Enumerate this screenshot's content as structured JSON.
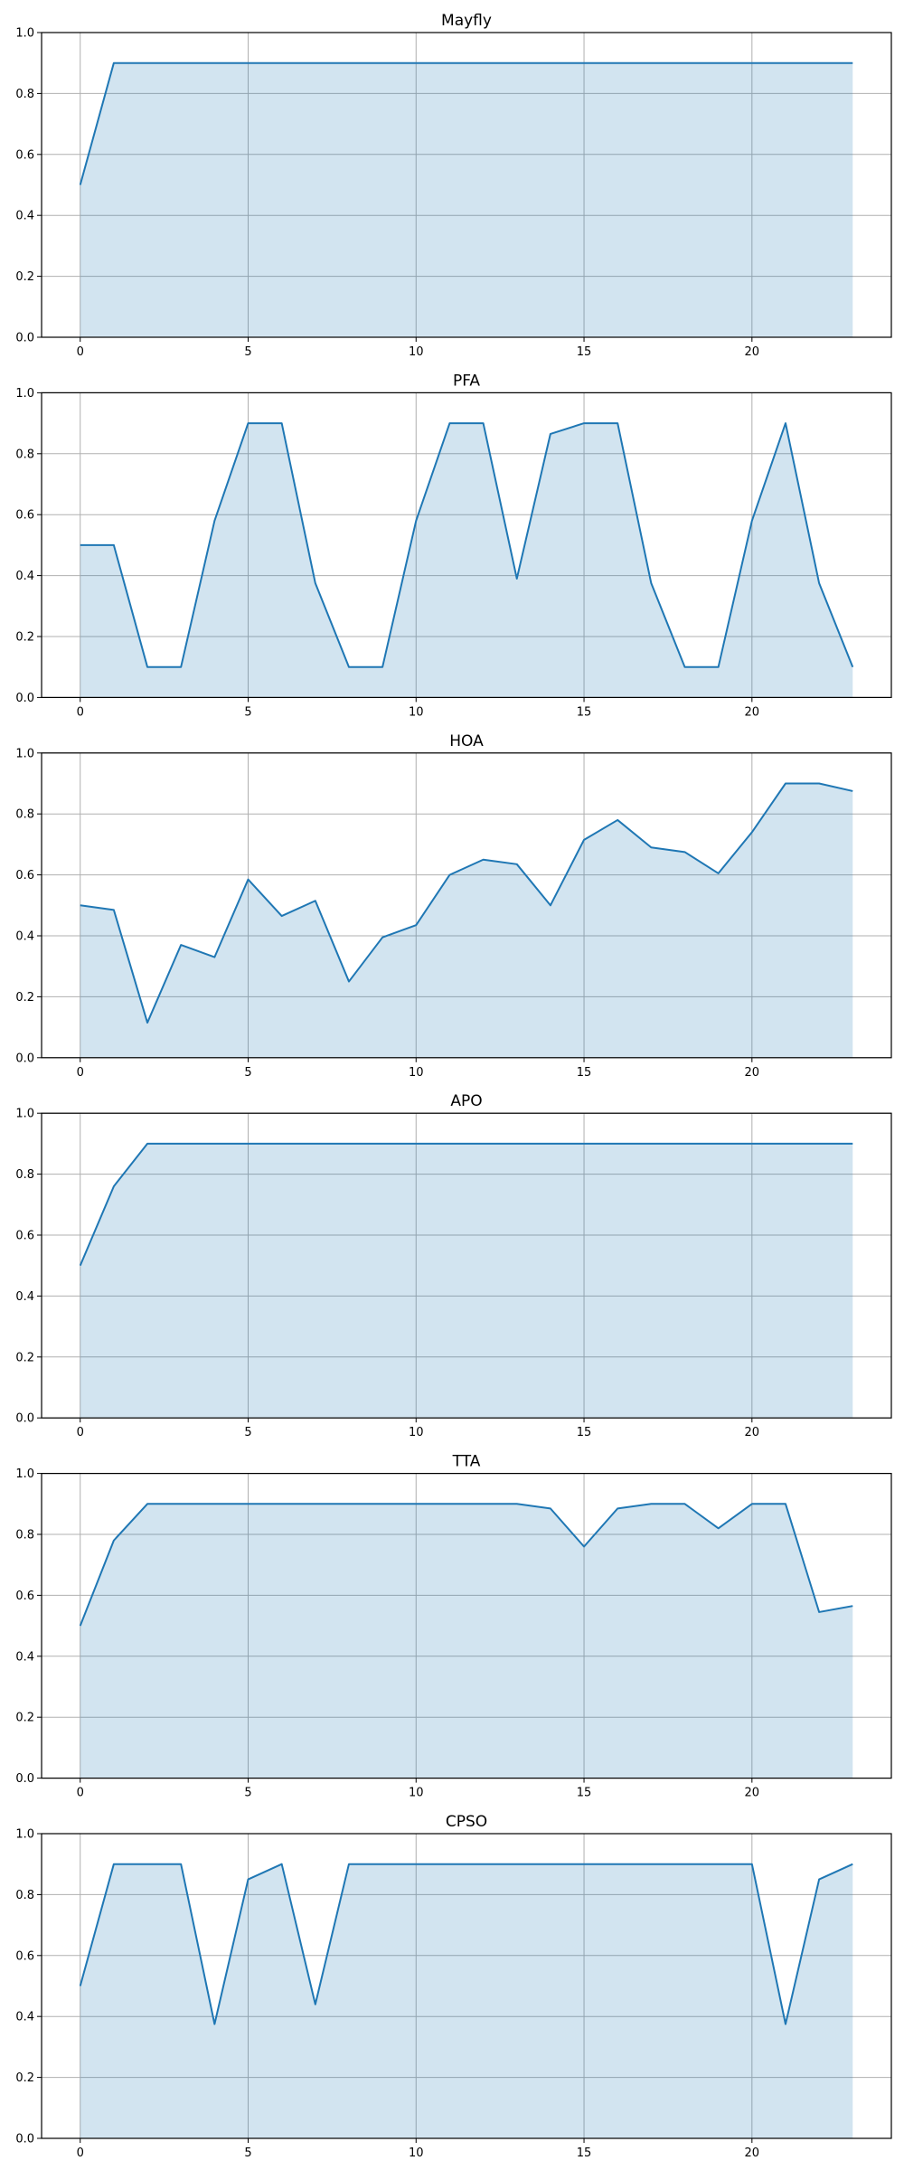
{
  "colors": {
    "line": "#1f77b4",
    "fill": "#1f77b4",
    "fill_opacity": 0.2,
    "grid": "#b0b0b0",
    "frame": "#000000"
  },
  "chart_data": [
    {
      "type": "area",
      "title": "Mayfly",
      "x": [
        0,
        1,
        2,
        3,
        4,
        5,
        6,
        7,
        8,
        9,
        10,
        11,
        12,
        13,
        14,
        15,
        16,
        17,
        18,
        19,
        20,
        21,
        22,
        23
      ],
      "series": [
        {
          "values": [
            0.5,
            0.9,
            0.9,
            0.9,
            0.9,
            0.9,
            0.9,
            0.9,
            0.9,
            0.9,
            0.9,
            0.9,
            0.9,
            0.9,
            0.9,
            0.9,
            0.9,
            0.9,
            0.9,
            0.9,
            0.9,
            0.9,
            0.9,
            0.9
          ]
        }
      ],
      "xlim": [
        -1.15,
        24.15
      ],
      "ylim": [
        0,
        1.0
      ],
      "xticks": [
        "0",
        "5",
        "10",
        "15",
        "20"
      ],
      "yticks": [
        "0.0",
        "0.2",
        "0.4",
        "0.6",
        "0.8",
        "1.0"
      ],
      "grid": true
    },
    {
      "type": "area",
      "title": "PFA",
      "x": [
        0,
        1,
        2,
        3,
        4,
        5,
        6,
        7,
        8,
        9,
        10,
        11,
        12,
        13,
        14,
        15,
        16,
        17,
        18,
        19,
        20,
        21,
        22,
        23
      ],
      "series": [
        {
          "values": [
            0.5,
            0.5,
            0.1,
            0.1,
            0.58,
            0.9,
            0.9,
            0.375,
            0.1,
            0.1,
            0.58,
            0.9,
            0.9,
            0.39,
            0.865,
            0.9,
            0.9,
            0.375,
            0.1,
            0.1,
            0.58,
            0.9,
            0.375,
            0.1
          ]
        }
      ],
      "xlim": [
        -1.15,
        24.15
      ],
      "ylim": [
        0,
        1.0
      ],
      "xticks": [
        "0",
        "5",
        "10",
        "15",
        "20"
      ],
      "yticks": [
        "0.0",
        "0.2",
        "0.4",
        "0.6",
        "0.8",
        "1.0"
      ],
      "grid": true
    },
    {
      "type": "area",
      "title": "HOA",
      "x": [
        0,
        1,
        2,
        3,
        4,
        5,
        6,
        7,
        8,
        9,
        10,
        11,
        12,
        13,
        14,
        15,
        16,
        17,
        18,
        19,
        20,
        21,
        22,
        23
      ],
      "series": [
        {
          "values": [
            0.5,
            0.485,
            0.115,
            0.37,
            0.33,
            0.585,
            0.465,
            0.515,
            0.25,
            0.395,
            0.435,
            0.6,
            0.65,
            0.635,
            0.5,
            0.715,
            0.78,
            0.69,
            0.675,
            0.605,
            0.74,
            0.9,
            0.9,
            0.875
          ]
        }
      ],
      "xlim": [
        -1.15,
        24.15
      ],
      "ylim": [
        0,
        1.0
      ],
      "xticks": [
        "0",
        "5",
        "10",
        "15",
        "20"
      ],
      "yticks": [
        "0.0",
        "0.2",
        "0.4",
        "0.6",
        "0.8",
        "1.0"
      ],
      "grid": true
    },
    {
      "type": "area",
      "title": "APO",
      "x": [
        0,
        1,
        2,
        3,
        4,
        5,
        6,
        7,
        8,
        9,
        10,
        11,
        12,
        13,
        14,
        15,
        16,
        17,
        18,
        19,
        20,
        21,
        22,
        23
      ],
      "series": [
        {
          "values": [
            0.5,
            0.76,
            0.9,
            0.9,
            0.9,
            0.9,
            0.9,
            0.9,
            0.9,
            0.9,
            0.9,
            0.9,
            0.9,
            0.9,
            0.9,
            0.9,
            0.9,
            0.9,
            0.9,
            0.9,
            0.9,
            0.9,
            0.9,
            0.9
          ]
        }
      ],
      "xlim": [
        -1.15,
        24.15
      ],
      "ylim": [
        0,
        1.0
      ],
      "xticks": [
        "0",
        "5",
        "10",
        "15",
        "20"
      ],
      "yticks": [
        "0.0",
        "0.2",
        "0.4",
        "0.6",
        "0.8",
        "1.0"
      ],
      "grid": true
    },
    {
      "type": "area",
      "title": "TTA",
      "x": [
        0,
        1,
        2,
        3,
        4,
        5,
        6,
        7,
        8,
        9,
        10,
        11,
        12,
        13,
        14,
        15,
        16,
        17,
        18,
        19,
        20,
        21,
        22,
        23
      ],
      "series": [
        {
          "values": [
            0.5,
            0.78,
            0.9,
            0.9,
            0.9,
            0.9,
            0.9,
            0.9,
            0.9,
            0.9,
            0.9,
            0.9,
            0.9,
            0.9,
            0.885,
            0.76,
            0.885,
            0.9,
            0.9,
            0.82,
            0.9,
            0.9,
            0.545,
            0.565
          ]
        }
      ],
      "xlim": [
        -1.15,
        24.15
      ],
      "ylim": [
        0,
        1.0
      ],
      "xticks": [
        "0",
        "5",
        "10",
        "15",
        "20"
      ],
      "yticks": [
        "0.0",
        "0.2",
        "0.4",
        "0.6",
        "0.8",
        "1.0"
      ],
      "grid": true
    },
    {
      "type": "area",
      "title": "CPSO",
      "x": [
        0,
        1,
        2,
        3,
        4,
        5,
        6,
        7,
        8,
        9,
        10,
        11,
        12,
        13,
        14,
        15,
        16,
        17,
        18,
        19,
        20,
        21,
        22,
        23
      ],
      "series": [
        {
          "values": [
            0.5,
            0.9,
            0.9,
            0.9,
            0.375,
            0.85,
            0.9,
            0.44,
            0.9,
            0.9,
            0.9,
            0.9,
            0.9,
            0.9,
            0.9,
            0.9,
            0.9,
            0.9,
            0.9,
            0.9,
            0.9,
            0.375,
            0.85,
            0.9
          ]
        }
      ],
      "xlim": [
        -1.15,
        24.15
      ],
      "ylim": [
        0,
        1.0
      ],
      "xticks": [
        "0",
        "5",
        "10",
        "15",
        "20"
      ],
      "yticks": [
        "0.0",
        "0.2",
        "0.4",
        "0.6",
        "0.8",
        "1.0"
      ],
      "grid": true
    }
  ]
}
